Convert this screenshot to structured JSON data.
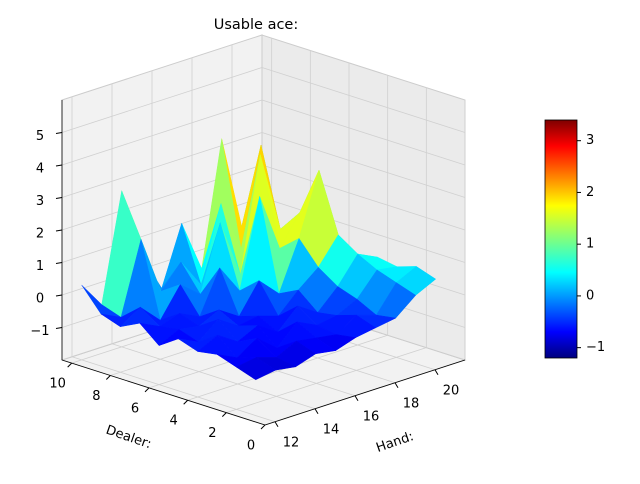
{
  "chart_data": {
    "type": "surface3d",
    "title": "Usable ace:",
    "xlabel": "Hand:",
    "ylabel": "Dealer:",
    "x": [
      12,
      13,
      14,
      15,
      16,
      17,
      18,
      19,
      20,
      21
    ],
    "y": [
      1,
      2,
      3,
      4,
      5,
      6,
      7,
      8,
      9,
      10
    ],
    "z": [
      [
        -0.9,
        -0.8,
        -0.9,
        -0.7,
        -0.8,
        -0.6,
        -0.5,
        -0.4,
        0.1,
        0.4
      ],
      [
        -0.7,
        -0.6,
        -0.8,
        -0.5,
        -0.6,
        -0.7,
        -0.3,
        -0.5,
        0.3,
        0.6
      ],
      [
        -0.5,
        -0.8,
        -0.4,
        -0.9,
        -0.3,
        -0.6,
        -0.5,
        -0.2,
        0.5,
        0.4
      ],
      [
        -0.6,
        -0.3,
        -0.7,
        -0.4,
        -0.8,
        -0.2,
        -0.6,
        0.0,
        0.8,
        0.5
      ],
      [
        -0.4,
        -0.7,
        -0.2,
        -0.6,
        -0.5,
        -0.7,
        -0.1,
        0.4,
        1.2,
        0.3
      ],
      [
        -0.8,
        -0.5,
        -0.6,
        -0.3,
        -0.7,
        0.2,
        -0.4,
        1.1,
        3.0,
        0.2
      ],
      [
        -0.3,
        -0.6,
        -0.4,
        -0.7,
        0.6,
        -0.3,
        2.4,
        0.6,
        1.5,
        0.1
      ],
      [
        -0.6,
        -0.2,
        -0.8,
        0.1,
        -0.4,
        1.6,
        -0.2,
        3.3,
        0.8,
        -0.2
      ],
      [
        -0.4,
        -0.7,
        1.5,
        -0.3,
        0.4,
        -0.5,
        1.8,
        0.2,
        3.2,
        -0.3
      ],
      [
        0.3,
        -0.5,
        2.8,
        0.6,
        -0.6,
        1.2,
        -0.4,
        3.4,
        0.5,
        -0.5
      ]
    ],
    "xlim": [
      11.5,
      21.5
    ],
    "ylim": [
      0,
      10.5
    ],
    "zlim": [
      -2,
      6
    ],
    "xticks": [
      12,
      14,
      16,
      18,
      20
    ],
    "yticks": [
      0,
      2,
      4,
      6,
      8,
      10
    ],
    "zticks": [
      {
        "value": -1,
        "label": "−1"
      },
      0,
      1,
      2,
      3,
      4,
      5
    ],
    "colormap": "jet",
    "clim": [
      -1.2,
      3.4
    ],
    "cticks": [
      {
        "value": -1,
        "label": "−1"
      },
      0,
      1,
      2,
      3
    ],
    "grid": true
  }
}
